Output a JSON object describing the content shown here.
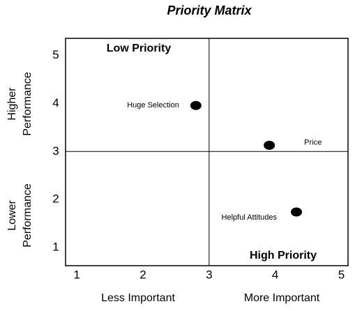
{
  "chart_data": {
    "type": "scatter",
    "title": "Priority Matrix",
    "series": [
      {
        "name": null,
        "color": "#000000",
        "x": [
          2.8,
          3.91,
          4.32
        ],
        "values": [
          3.96,
          3.13,
          1.74
        ],
        "point_labels": [
          "Huge Selection",
          "Price",
          "Helpful Attitudes"
        ]
      }
    ],
    "xlim": [
      0.83,
      5.1
    ],
    "xticks": [
      1,
      2,
      3,
      4,
      5
    ],
    "ylim": [
      0.62,
      5.36
    ],
    "yticks": [
      1,
      2,
      3,
      4,
      5
    ],
    "x_axis_labels": [
      "Less Important",
      "More Important"
    ],
    "y_axis_labels": [
      [
        "Higher",
        "Performance"
      ],
      [
        "Lower",
        "Performance"
      ]
    ],
    "quadrant_labels": [
      "Low Priority",
      "High Priority"
    ],
    "divider_x": 3,
    "divider_y": 3,
    "grid": false
  }
}
